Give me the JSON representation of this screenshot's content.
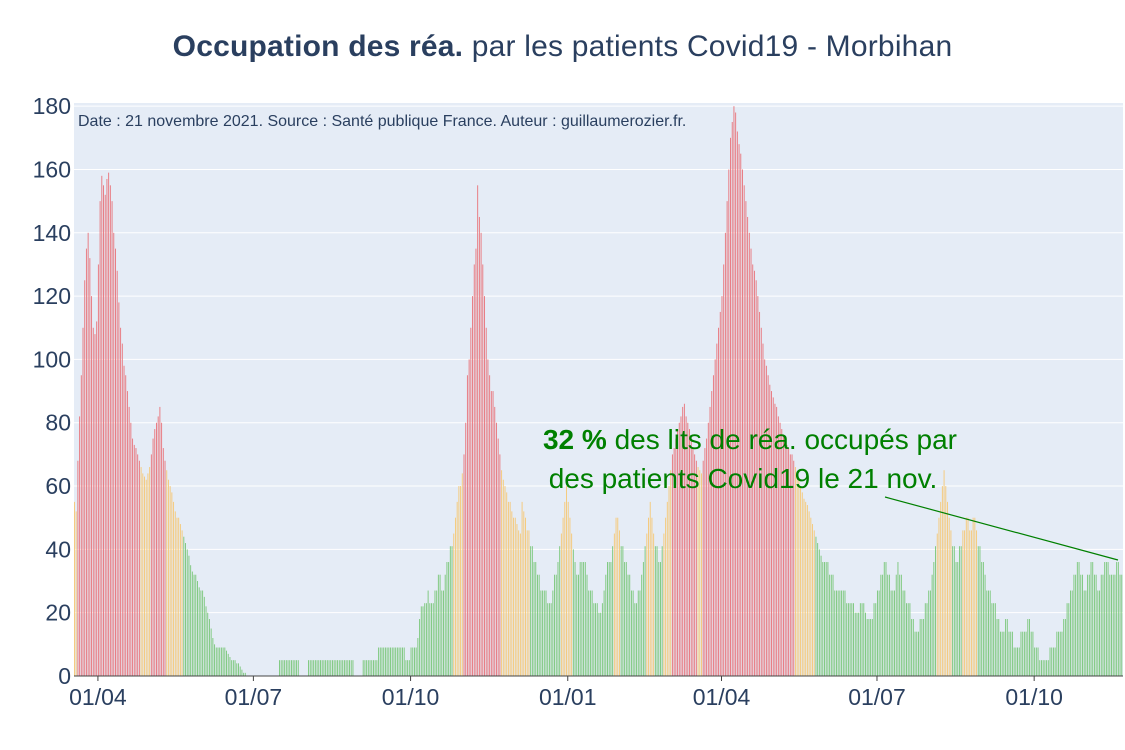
{
  "title": {
    "bold": "Occupation des réa.",
    "rest": " par les patients Covid19 - Morbihan"
  },
  "source_note": "Date : 21 novembre 2021. Source : Santé publique France. Auteur : guillaumerozier.fr.",
  "annotation": {
    "value": "32  %",
    "line1_rest": " des lits de réa. occupés par",
    "line2": "des patients Covid19 le 21 nov."
  },
  "colors": {
    "plot_bg": "#e5ecf6",
    "grid": "#ffffff",
    "text": "#2a3f5f",
    "high": "#e8787f",
    "medium": "#f5c97a",
    "low": "#7dc87d",
    "annotation": "#008000"
  },
  "chart_data": {
    "type": "bar",
    "x_ticks": [
      "01/04",
      "01/07",
      "01/10",
      "01/01",
      "01/04",
      "01/07",
      "01/10"
    ],
    "ylim": [
      0,
      181
    ],
    "y_ticks": [
      0,
      20,
      40,
      60,
      80,
      100,
      120,
      140,
      160,
      180
    ],
    "grid": true,
    "color_rule": "green when < 40% of ICU capacity, orange 40–60%, red > 60%",
    "segments": [
      {
        "start": "2020-03-18",
        "end": "2020-03-20",
        "values": [
          55,
          52,
          68
        ]
      },
      {
        "start": "2020-03-21",
        "end": "2020-03-31",
        "values": [
          82,
          95,
          110,
          125,
          135,
          140,
          132,
          120,
          110,
          108,
          112
        ]
      },
      {
        "start": "2020-04-01",
        "end": "2020-04-14",
        "values": [
          130,
          150,
          158,
          155,
          152,
          157,
          159,
          155,
          150,
          140,
          135,
          128,
          118,
          110
        ]
      },
      {
        "start": "2020-04-15",
        "end": "2020-04-20",
        "values": [
          105,
          98,
          95,
          90,
          85,
          80
        ]
      },
      {
        "start": "2020-04-21",
        "end": "2020-05-10",
        "values": [
          75,
          73,
          72,
          70,
          68,
          66,
          64,
          63,
          62,
          64,
          66,
          70,
          75,
          78,
          80,
          82,
          85,
          80,
          72,
          68
        ]
      },
      {
        "start": "2020-05-11",
        "end": "2020-05-31",
        "values": [
          65,
          62,
          60,
          58,
          55,
          52,
          50,
          50,
          48,
          46,
          44,
          42,
          40,
          38,
          35,
          33,
          32,
          32,
          30,
          28,
          27
        ]
      },
      {
        "start": "2020-06-01",
        "end": "2020-06-30",
        "values": [
          27,
          25,
          22,
          20,
          18,
          15,
          12,
          10,
          9,
          9,
          9,
          9,
          9,
          9,
          8,
          7,
          6,
          5,
          5,
          5,
          4,
          4,
          3,
          2,
          1,
          1,
          0,
          0,
          0,
          0
        ]
      },
      {
        "start": "2020-07-01",
        "end": "2020-09-15",
        "note": "0–9 range",
        "values": [
          0,
          0,
          0,
          0,
          0,
          0,
          0,
          0,
          0,
          0,
          0,
          0,
          0,
          0,
          0,
          5,
          5,
          5,
          5,
          5,
          5,
          5,
          5,
          5,
          5,
          5,
          5,
          0,
          0,
          0,
          0,
          0,
          5,
          5,
          5,
          5,
          5,
          5,
          5,
          5,
          5,
          5,
          5,
          5,
          5,
          5,
          5,
          5,
          5,
          5,
          5,
          5,
          5,
          5,
          5,
          5,
          5,
          5,
          5,
          0,
          0,
          0,
          0,
          0,
          5,
          5,
          5,
          5,
          5,
          5,
          5,
          5,
          5,
          9,
          9,
          9
        ]
      },
      {
        "start": "2020-09-16",
        "end": "2020-10-31",
        "values": [
          9,
          9,
          9,
          9,
          9,
          9,
          9,
          9,
          9,
          9,
          9,
          9,
          5,
          5,
          5,
          9,
          9,
          9,
          9,
          12,
          18,
          22,
          22,
          23,
          23,
          27,
          23,
          23,
          23,
          27,
          27,
          32,
          32,
          27,
          27,
          32,
          36,
          36,
          41,
          41,
          45,
          50,
          55,
          60,
          60,
          64
        ]
      },
      {
        "start": "2020-11-01",
        "end": "2020-11-30",
        "values": [
          70,
          80,
          95,
          100,
          110,
          120,
          130,
          135,
          155,
          145,
          140,
          130,
          120,
          110,
          100,
          95,
          90,
          90,
          85,
          80,
          75,
          70,
          65,
          62,
          60,
          58,
          55,
          55,
          52,
          50
        ]
      },
      {
        "start": "2020-12-01",
        "end": "2020-12-31",
        "values": [
          50,
          48,
          46,
          45,
          55,
          52,
          50,
          46,
          46,
          41,
          41,
          36,
          36,
          32,
          32,
          27,
          27,
          27,
          27,
          23,
          23,
          23,
          27,
          32,
          32,
          36,
          41,
          45,
          50,
          55,
          60
        ]
      },
      {
        "start": "2021-01-01",
        "end": "2021-02-28",
        "values": [
          55,
          50,
          45,
          40,
          36,
          32,
          32,
          36,
          36,
          36,
          36,
          32,
          27,
          27,
          27,
          23,
          23,
          23,
          20,
          20,
          23,
          27,
          32,
          36,
          36,
          36,
          41,
          45,
          50,
          50,
          46,
          41,
          41,
          36,
          36,
          32,
          32,
          27,
          27,
          23,
          23,
          27,
          27,
          32,
          36,
          41,
          45,
          50,
          55,
          50,
          45,
          41,
          41,
          36,
          36,
          41,
          45,
          50,
          55
        ]
      },
      {
        "start": "2021-03-01",
        "end": "2021-03-31",
        "values": [
          60,
          65,
          70,
          72,
          75,
          78,
          80,
          82,
          85,
          86,
          82,
          80,
          78,
          75,
          72,
          70,
          68,
          66,
          65,
          64,
          68,
          72,
          75,
          80,
          85,
          90,
          95,
          100,
          105,
          110,
          115
        ]
      },
      {
        "start": "2021-04-01",
        "end": "2021-04-30",
        "values": [
          120,
          130,
          140,
          150,
          160,
          170,
          175,
          180,
          178,
          172,
          168,
          165,
          160,
          155,
          150,
          145,
          140,
          135,
          130,
          128,
          125,
          120,
          115,
          110,
          105,
          100,
          98,
          95,
          92,
          90
        ]
      },
      {
        "start": "2021-05-01",
        "end": "2021-05-31",
        "values": [
          88,
          86,
          85,
          82,
          80,
          78,
          76,
          75,
          73,
          72,
          70,
          70,
          68,
          66,
          64,
          62,
          60,
          58,
          56,
          55,
          54,
          52,
          50,
          48,
          46,
          44,
          42,
          40,
          38,
          36,
          36
        ]
      },
      {
        "start": "2021-06-01",
        "end": "2021-08-31",
        "values": [
          36,
          36,
          32,
          32,
          32,
          27,
          27,
          27,
          27,
          27,
          27,
          27,
          23,
          23,
          23,
          23,
          23,
          20,
          20,
          20,
          23,
          23,
          23,
          20,
          18,
          18,
          18,
          18,
          23,
          23,
          27,
          27,
          32,
          32,
          36,
          36,
          32,
          32,
          27,
          27,
          27,
          32,
          36,
          32,
          32,
          27,
          27,
          23,
          23,
          23,
          18,
          18,
          14,
          14,
          14,
          18,
          18,
          18,
          23,
          23,
          27,
          27,
          32,
          36,
          41,
          45,
          50,
          55,
          60,
          65,
          60,
          55,
          50,
          46,
          41,
          41,
          36,
          36,
          41,
          41,
          46,
          46,
          50,
          50,
          46,
          46,
          50,
          50,
          46,
          41,
          41,
          36
        ]
      },
      {
        "start": "2021-09-01",
        "end": "2021-11-21",
        "values": [
          36,
          32,
          27,
          27,
          27,
          23,
          23,
          23,
          18,
          18,
          14,
          14,
          14,
          18,
          18,
          14,
          14,
          14,
          9,
          9,
          9,
          9,
          14,
          14,
          14,
          14,
          18,
          18,
          14,
          14,
          9,
          9,
          9,
          5,
          5,
          5,
          5,
          5,
          5,
          9,
          9,
          9,
          9,
          14,
          14,
          14,
          14,
          18,
          18,
          23,
          23,
          27,
          27,
          32,
          32,
          36,
          36,
          32,
          32,
          27,
          27,
          32,
          32,
          36,
          36,
          32,
          32,
          27,
          27,
          32,
          32,
          36,
          36,
          36,
          32,
          32,
          32,
          32,
          36,
          36,
          32,
          32
        ]
      }
    ]
  }
}
